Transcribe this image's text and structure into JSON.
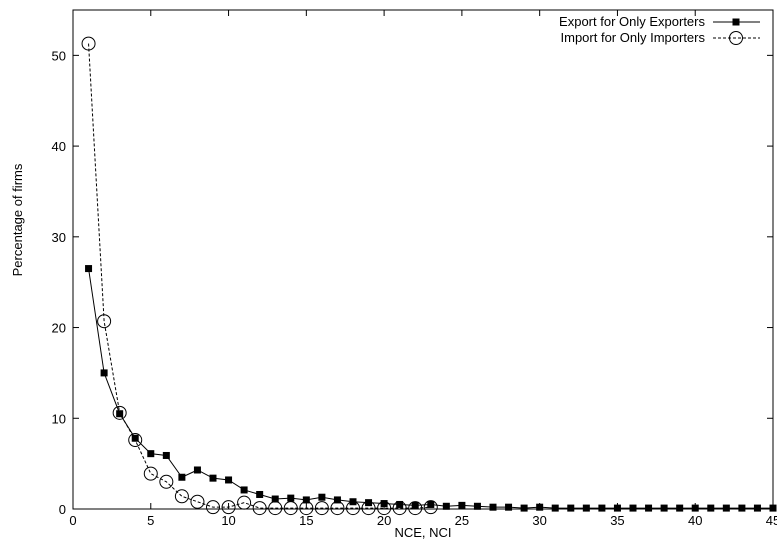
{
  "chart_data": {
    "type": "line",
    "title": "",
    "xlabel": "NCE, NCI",
    "ylabel": "Percentage of firms",
    "xlim": [
      0,
      45
    ],
    "ylim": [
      0,
      55
    ],
    "x_ticks": [
      "0",
      "5",
      "10",
      "15",
      "20",
      "25",
      "30",
      "35",
      "40",
      "45"
    ],
    "y_ticks": [
      "0",
      "10",
      "20",
      "30",
      "40",
      "50"
    ],
    "grid": false,
    "legend_position": "top-right",
    "series": [
      {
        "name": "Export for Only Exporters",
        "line_style": "solid",
        "marker": "filled-square",
        "x": [
          1,
          2,
          3,
          4,
          5,
          6,
          7,
          8,
          9,
          10,
          11,
          12,
          13,
          14,
          15,
          16,
          17,
          18,
          19,
          20,
          21,
          22,
          23,
          24,
          25,
          26,
          27,
          28,
          29,
          30,
          31,
          32,
          33,
          34,
          35,
          36,
          37,
          38,
          39,
          40,
          41,
          42,
          43,
          44,
          45
        ],
        "y": [
          26.5,
          15.0,
          10.5,
          7.8,
          6.1,
          5.9,
          3.5,
          4.3,
          3.4,
          3.2,
          2.1,
          1.6,
          1.1,
          1.2,
          1.0,
          1.3,
          1.0,
          0.8,
          0.7,
          0.6,
          0.5,
          0.4,
          0.5,
          0.3,
          0.4,
          0.3,
          0.2,
          0.2,
          0.1,
          0.2,
          0.1,
          0.1,
          0.1,
          0.1,
          0.1,
          0.1,
          0.1,
          0.1,
          0.1,
          0.1,
          0.1,
          0.1,
          0.1,
          0.1,
          0.1
        ]
      },
      {
        "name": "Import for Only Importers",
        "line_style": "dashed",
        "marker": "open-circle",
        "x": [
          1,
          2,
          3,
          4,
          5,
          6,
          7,
          8,
          9,
          10,
          11,
          12,
          13,
          14,
          15,
          16,
          17,
          18,
          19,
          20,
          21,
          22,
          23
        ],
        "y": [
          51.3,
          20.7,
          10.6,
          7.6,
          3.9,
          3.0,
          1.4,
          0.8,
          0.2,
          0.2,
          0.7,
          0.1,
          0.1,
          0.1,
          0.1,
          0.1,
          0.1,
          0.1,
          0.1,
          0.1,
          0.1,
          0.1,
          0.2
        ]
      }
    ]
  }
}
